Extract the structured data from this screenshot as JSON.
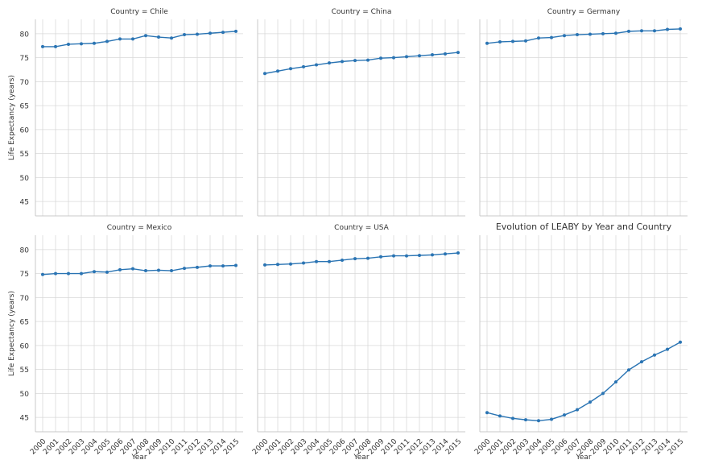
{
  "chart_data": {
    "type": "line",
    "facet_label_prefix": "Country = ",
    "x_label": "Year",
    "y_label": "Life Expectancy (years)",
    "y_ticks": [
      45,
      50,
      55,
      60,
      65,
      70,
      75,
      80
    ],
    "ylim": [
      42,
      83
    ],
    "x": [
      2000,
      2001,
      2002,
      2003,
      2004,
      2005,
      2006,
      2007,
      2008,
      2009,
      2010,
      2011,
      2012,
      2013,
      2014,
      2015
    ],
    "line_color": "#2a74b3",
    "grid": true,
    "panels": [
      {
        "country": "Chile",
        "values": [
          77.3,
          77.3,
          77.8,
          77.9,
          78.0,
          78.4,
          78.9,
          78.9,
          79.6,
          79.3,
          79.1,
          79.8,
          79.9,
          80.1,
          80.3,
          80.5
        ]
      },
      {
        "country": "China",
        "values": [
          71.7,
          72.2,
          72.7,
          73.1,
          73.5,
          73.9,
          74.2,
          74.4,
          74.5,
          74.9,
          75.0,
          75.2,
          75.4,
          75.6,
          75.8,
          76.1
        ]
      },
      {
        "country": "Germany",
        "values": [
          78.0,
          78.3,
          78.4,
          78.5,
          79.1,
          79.2,
          79.6,
          79.8,
          79.9,
          80.0,
          80.1,
          80.5,
          80.6,
          80.6,
          80.9,
          81.0
        ]
      },
      {
        "country": "Mexico",
        "values": [
          74.8,
          75.0,
          75.0,
          75.0,
          75.4,
          75.3,
          75.8,
          76.0,
          75.6,
          75.7,
          75.6,
          76.1,
          76.3,
          76.6,
          76.6,
          76.7
        ]
      },
      {
        "country": "USA",
        "values": [
          76.8,
          76.9,
          77.0,
          77.2,
          77.5,
          77.5,
          77.8,
          78.1,
          78.2,
          78.5,
          78.7,
          78.7,
          78.8,
          78.9,
          79.1,
          79.3
        ]
      },
      {
        "title": "Evolution of LEABY by Year and Country",
        "values": [
          46.0,
          45.3,
          44.8,
          44.5,
          44.3,
          44.6,
          45.5,
          46.6,
          48.2,
          50.0,
          52.4,
          54.9,
          56.6,
          58.0,
          59.2,
          60.7
        ]
      }
    ]
  }
}
